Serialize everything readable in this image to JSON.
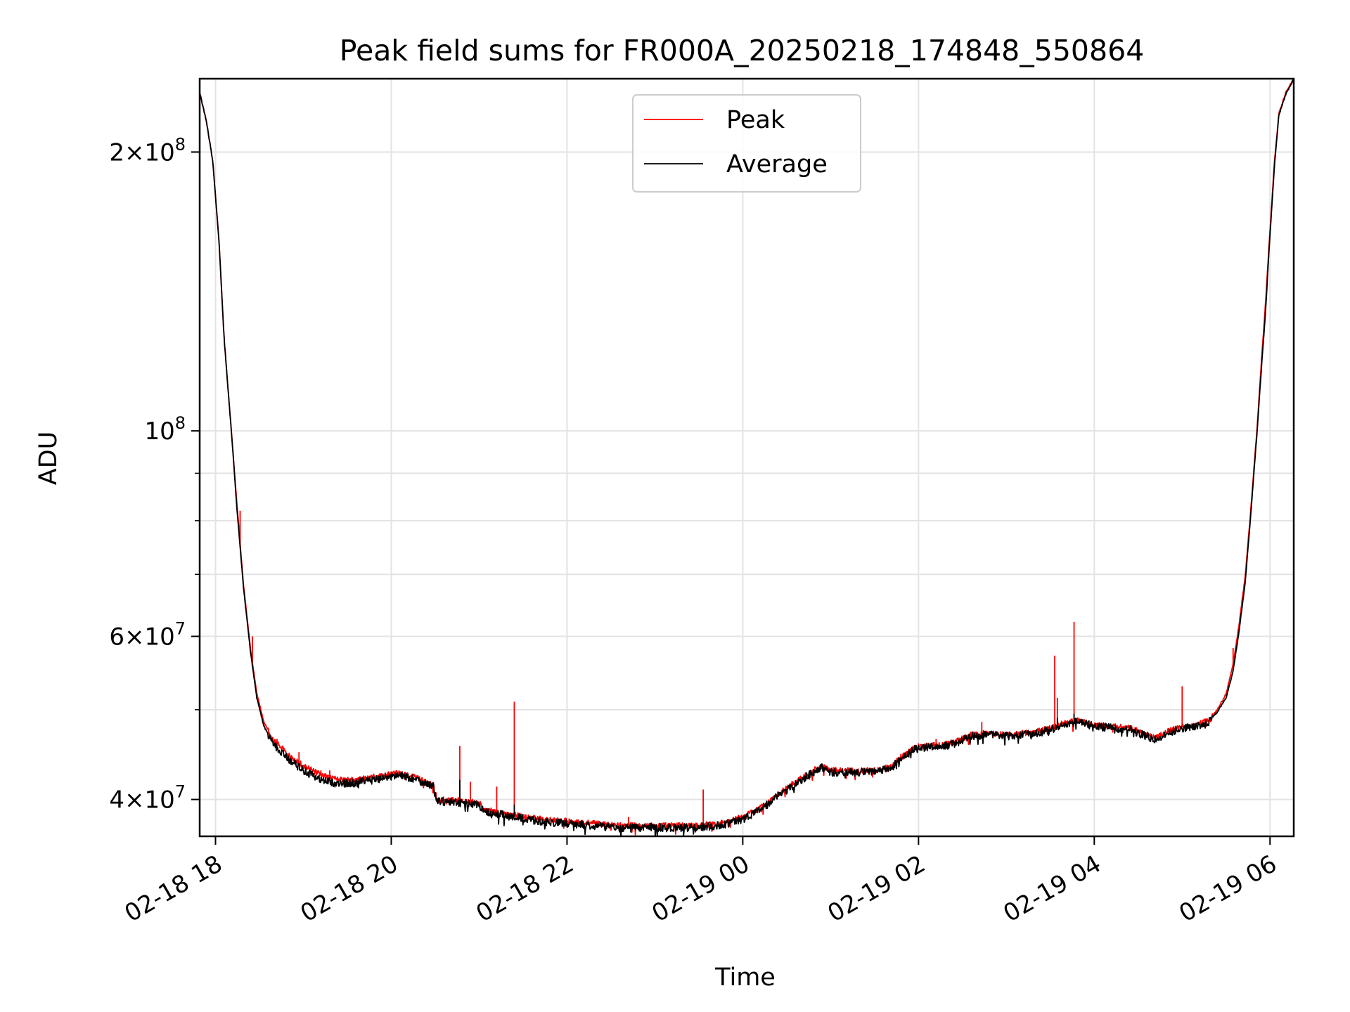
{
  "chart_data": {
    "type": "line",
    "title": "Peak field sums for FR000A_20250218_174848_550864",
    "xlabel": "Time",
    "ylabel": "ADU",
    "yscale": "log",
    "xlim_hours": [
      17.82,
      30.27
    ],
    "ylim": [
      36500000,
      240000000
    ],
    "grid": true,
    "legend_position": "upper center",
    "x_ticks": [
      {
        "hours": 18,
        "label": "02-18 18"
      },
      {
        "hours": 20,
        "label": "02-18 20"
      },
      {
        "hours": 22,
        "label": "02-18 22"
      },
      {
        "hours": 24,
        "label": "02-19 00"
      },
      {
        "hours": 26,
        "label": "02-19 02"
      },
      {
        "hours": 28,
        "label": "02-19 04"
      },
      {
        "hours": 30,
        "label": "02-19 06"
      }
    ],
    "y_ticks": [
      {
        "value": 40000000,
        "mant": "4",
        "exp": "7"
      },
      {
        "value": 60000000,
        "mant": "6",
        "exp": "7"
      },
      {
        "value": 100000000,
        "mant": "",
        "exp": "8"
      },
      {
        "value": 200000000,
        "mant": "2",
        "exp": "8"
      }
    ],
    "y_minor_ticks": [
      50000000,
      70000000,
      80000000,
      90000000
    ],
    "series": [
      {
        "name": "Peak",
        "color": "#ff0000",
        "points": [
          [
            17.82,
            232000000
          ],
          [
            17.9,
            215000000
          ],
          [
            17.97,
            195000000
          ],
          [
            18.04,
            160000000
          ],
          [
            18.1,
            125000000
          ],
          [
            18.18,
            100000000
          ],
          [
            18.25,
            82000000
          ],
          [
            18.32,
            68000000
          ],
          [
            18.4,
            58000000
          ],
          [
            18.47,
            52000000
          ],
          [
            18.55,
            48500000
          ],
          [
            18.65,
            46500000
          ],
          [
            18.8,
            45000000
          ],
          [
            19.0,
            43500000
          ],
          [
            19.2,
            42500000
          ],
          [
            19.4,
            42000000
          ],
          [
            19.6,
            42000000
          ],
          [
            19.8,
            42300000
          ],
          [
            20.0,
            42600000
          ],
          [
            20.1,
            42700000
          ],
          [
            20.3,
            42200000
          ],
          [
            20.48,
            41500000
          ],
          [
            20.52,
            40000000
          ],
          [
            20.8,
            39900000
          ],
          [
            21.0,
            39700000
          ],
          [
            21.05,
            39000000
          ],
          [
            21.4,
            38500000
          ],
          [
            21.6,
            38200000
          ],
          [
            21.8,
            38000000
          ],
          [
            22.0,
            37900000
          ],
          [
            22.3,
            37700000
          ],
          [
            22.6,
            37500000
          ],
          [
            23.0,
            37500000
          ],
          [
            23.4,
            37500000
          ],
          [
            23.6,
            37600000
          ],
          [
            23.8,
            37800000
          ],
          [
            24.0,
            38300000
          ],
          [
            24.2,
            39200000
          ],
          [
            24.4,
            40500000
          ],
          [
            24.6,
            41800000
          ],
          [
            24.8,
            43000000
          ],
          [
            24.9,
            43500000
          ],
          [
            25.0,
            43000000
          ],
          [
            25.2,
            43000000
          ],
          [
            25.5,
            43000000
          ],
          [
            25.7,
            43500000
          ],
          [
            25.8,
            44500000
          ],
          [
            25.95,
            45500000
          ],
          [
            26.1,
            45700000
          ],
          [
            26.3,
            45900000
          ],
          [
            26.45,
            46300000
          ],
          [
            26.6,
            47000000
          ],
          [
            26.8,
            47200000
          ],
          [
            27.0,
            47000000
          ],
          [
            27.3,
            47300000
          ],
          [
            27.5,
            47800000
          ],
          [
            27.7,
            48500000
          ],
          [
            27.8,
            48700000
          ],
          [
            28.0,
            48200000
          ],
          [
            28.2,
            48000000
          ],
          [
            28.4,
            47800000
          ],
          [
            28.6,
            47000000
          ],
          [
            28.7,
            46600000
          ],
          [
            28.85,
            47500000
          ],
          [
            29.05,
            48000000
          ],
          [
            29.2,
            48300000
          ],
          [
            29.3,
            48700000
          ],
          [
            29.4,
            50000000
          ],
          [
            29.5,
            52000000
          ],
          [
            29.58,
            56000000
          ],
          [
            29.65,
            62000000
          ],
          [
            29.72,
            70000000
          ],
          [
            29.78,
            82000000
          ],
          [
            29.85,
            100000000
          ],
          [
            29.9,
            118000000
          ],
          [
            29.95,
            138000000
          ],
          [
            30.0,
            165000000
          ],
          [
            30.05,
            195000000
          ],
          [
            30.1,
            220000000
          ],
          [
            30.18,
            232000000
          ],
          [
            30.27,
            240000000
          ]
        ],
        "spikes": [
          [
            18.28,
            82000000
          ],
          [
            18.42,
            60000000
          ],
          [
            18.7,
            46500000
          ],
          [
            18.95,
            45000000
          ],
          [
            19.2,
            43000000
          ],
          [
            19.3,
            43000000
          ],
          [
            20.78,
            45700000
          ],
          [
            20.9,
            41800000
          ],
          [
            21.2,
            41300000
          ],
          [
            21.4,
            51000000
          ],
          [
            22.7,
            38300000
          ],
          [
            23.55,
            41000000
          ],
          [
            23.95,
            38500000
          ],
          [
            26.0,
            46000000
          ],
          [
            26.2,
            46500000
          ],
          [
            26.72,
            48500000
          ],
          [
            27.55,
            57200000
          ],
          [
            27.58,
            51500000
          ],
          [
            27.77,
            62200000
          ],
          [
            29.0,
            53000000
          ],
          [
            29.58,
            58300000
          ]
        ]
      },
      {
        "name": "Average",
        "color": "#000000",
        "points": [
          [
            17.82,
            232000000
          ],
          [
            17.9,
            215000000
          ],
          [
            17.97,
            195000000
          ],
          [
            18.04,
            160000000
          ],
          [
            18.1,
            125000000
          ],
          [
            18.18,
            100000000
          ],
          [
            18.25,
            81000000
          ],
          [
            18.32,
            67500000
          ],
          [
            18.4,
            57500000
          ],
          [
            18.47,
            51500000
          ],
          [
            18.55,
            48000000
          ],
          [
            18.65,
            46000000
          ],
          [
            18.8,
            44500000
          ],
          [
            19.0,
            43000000
          ],
          [
            19.2,
            42000000
          ],
          [
            19.4,
            41600000
          ],
          [
            19.6,
            41700000
          ],
          [
            19.8,
            42000000
          ],
          [
            20.0,
            42400000
          ],
          [
            20.1,
            42500000
          ],
          [
            20.3,
            42000000
          ],
          [
            20.48,
            41300000
          ],
          [
            20.52,
            39800000
          ],
          [
            20.8,
            39700000
          ],
          [
            21.0,
            39500000
          ],
          [
            21.05,
            38800000
          ],
          [
            21.4,
            38300000
          ],
          [
            21.6,
            38000000
          ],
          [
            21.8,
            37800000
          ],
          [
            22.0,
            37700000
          ],
          [
            22.3,
            37500000
          ],
          [
            22.6,
            37300000
          ],
          [
            23.0,
            37300000
          ],
          [
            23.4,
            37300000
          ],
          [
            23.6,
            37400000
          ],
          [
            23.8,
            37600000
          ],
          [
            24.0,
            38100000
          ],
          [
            24.2,
            39000000
          ],
          [
            24.4,
            40300000
          ],
          [
            24.6,
            41600000
          ],
          [
            24.8,
            42800000
          ],
          [
            24.9,
            43300000
          ],
          [
            25.0,
            42800000
          ],
          [
            25.2,
            42800000
          ],
          [
            25.5,
            42800000
          ],
          [
            25.7,
            43300000
          ],
          [
            25.8,
            44300000
          ],
          [
            25.95,
            45300000
          ],
          [
            26.1,
            45500000
          ],
          [
            26.3,
            45700000
          ],
          [
            26.45,
            46100000
          ],
          [
            26.6,
            46800000
          ],
          [
            26.8,
            47000000
          ],
          [
            27.0,
            46800000
          ],
          [
            27.3,
            47100000
          ],
          [
            27.5,
            47600000
          ],
          [
            27.7,
            48300000
          ],
          [
            27.8,
            48500000
          ],
          [
            28.0,
            48000000
          ],
          [
            28.2,
            47800000
          ],
          [
            28.4,
            47600000
          ],
          [
            28.6,
            46800000
          ],
          [
            28.7,
            46400000
          ],
          [
            28.85,
            47300000
          ],
          [
            29.05,
            47800000
          ],
          [
            29.2,
            48100000
          ],
          [
            29.3,
            48500000
          ],
          [
            29.4,
            49700000
          ],
          [
            29.5,
            51500000
          ],
          [
            29.58,
            55000000
          ],
          [
            29.65,
            61000000
          ],
          [
            29.72,
            69000000
          ],
          [
            29.78,
            81000000
          ],
          [
            29.85,
            99000000
          ],
          [
            29.9,
            116000000
          ],
          [
            29.95,
            135000000
          ],
          [
            30.0,
            163000000
          ],
          [
            30.05,
            193000000
          ],
          [
            30.1,
            219000000
          ],
          [
            30.18,
            231000000
          ],
          [
            30.27,
            240000000
          ]
        ],
        "spikes": [
          [
            20.78,
            42000000
          ],
          [
            21.4,
            39500000
          ],
          [
            27.77,
            49500000
          ],
          [
            27.58,
            49000000
          ]
        ]
      }
    ]
  }
}
